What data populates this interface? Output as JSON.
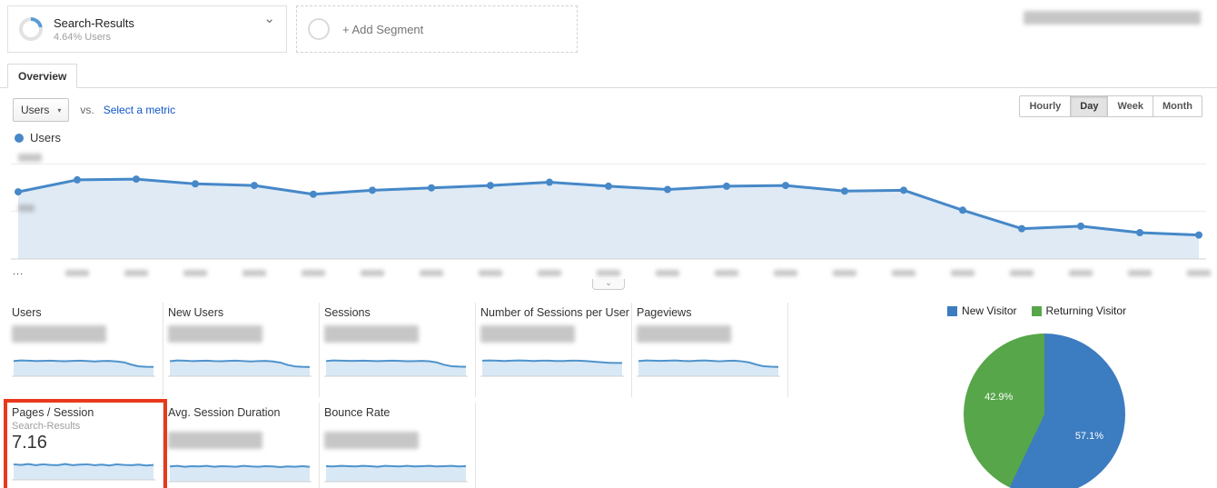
{
  "icons": {
    "chevron_down": "⌄",
    "dropdown_arrow": "▾"
  },
  "header": {
    "segment": {
      "name": "Search-Results",
      "subtitle": "4.64% Users"
    },
    "add_segment_label": "+ Add Segment",
    "date_range_redacted": true
  },
  "tabs": {
    "overview": "Overview"
  },
  "toolbar": {
    "metric_dropdown_value": "Users",
    "vs_label": "vs.",
    "select_metric_label": "Select a metric",
    "granularity_buttons": [
      "Hourly",
      "Day",
      "Week",
      "Month"
    ],
    "granularity_selected": "Day"
  },
  "chart_legend": {
    "label": "Users",
    "color": "#4688c8"
  },
  "chart_data": [
    {
      "type": "line",
      "title": "Users by day",
      "series": [
        {
          "name": "Users",
          "values": [
            706,
            832,
            840,
            790,
            773,
            681,
            723,
            748,
            773,
            807,
            765,
            731,
            765,
            773,
            714,
            723,
            513,
            319,
            345,
            277,
            252
          ]
        }
      ],
      "ylim": [
        0,
        1000
      ],
      "x_first_tick": "...",
      "y_tick_labels": "blurred in screenshot",
      "x_tick_labels": "blurred in screenshot",
      "line_color": "#4688c8",
      "area_color": "#dfeaf5",
      "note": "Axis labels are blurred in the source screenshot; series values estimated from pixel positions."
    },
    {
      "type": "pie",
      "labels": [
        "New Visitor",
        "Returning Visitor"
      ],
      "values": [
        57.1,
        42.9
      ],
      "slice_labels": [
        "57.1%",
        "42.9%"
      ],
      "colors": [
        "#3c7cc0",
        "#57a64a"
      ],
      "legend_position": "top-right"
    }
  ],
  "metrics": {
    "row1": [
      {
        "title": "Users",
        "value_redacted": true,
        "spark": [
          72,
          75,
          74,
          72,
          73,
          74,
          72,
          71,
          73,
          74,
          72,
          70,
          72,
          73,
          70,
          66,
          55,
          47,
          45,
          44
        ]
      },
      {
        "title": "New Users",
        "value_redacted": true,
        "spark": [
          70,
          74,
          73,
          71,
          72,
          73,
          71,
          70,
          72,
          73,
          71,
          69,
          71,
          72,
          69,
          64,
          53,
          46,
          44,
          43
        ]
      },
      {
        "title": "Sessions",
        "value_redacted": true,
        "spark": [
          71,
          74,
          73,
          72,
          72,
          73,
          72,
          71,
          72,
          73,
          72,
          70,
          71,
          72,
          70,
          65,
          54,
          47,
          45,
          44
        ]
      },
      {
        "title": "Number of Sessions per User",
        "value_redacted": true,
        "spark": [
          55,
          56,
          55,
          54,
          55,
          56,
          55,
          54,
          55,
          55,
          54,
          54,
          55,
          55,
          54,
          52,
          50,
          48,
          47,
          47
        ]
      },
      {
        "title": "Pageviews",
        "value_redacted": true,
        "spark": [
          70,
          73,
          72,
          71,
          72,
          73,
          71,
          70,
          72,
          73,
          71,
          69,
          71,
          72,
          69,
          64,
          54,
          46,
          44,
          43
        ]
      }
    ],
    "row2": [
      {
        "title": "Pages / Session",
        "subtitle": "Search-Results",
        "value": "7.16",
        "highlighted": true,
        "spark": [
          52,
          50,
          53,
          49,
          52,
          50,
          49,
          53,
          49,
          51,
          52,
          49,
          51,
          48,
          52,
          50,
          49,
          51,
          48,
          50
        ]
      },
      {
        "title": "Avg. Session Duration",
        "value_redacted": true,
        "spark": [
          50,
          52,
          49,
          51,
          50,
          52,
          49,
          51,
          50,
          49,
          52,
          50,
          49,
          51,
          50,
          48,
          50,
          49,
          51,
          49
        ]
      },
      {
        "title": "Bounce Rate",
        "value_redacted": true,
        "spark": [
          50,
          49,
          51,
          50,
          49,
          51,
          50,
          48,
          51,
          50,
          49,
          51,
          49,
          50,
          51,
          49,
          50,
          51,
          49,
          50
        ]
      }
    ]
  },
  "ui_colors": {
    "highlight_red": "#e8391d",
    "link_blue": "#1155cc"
  }
}
